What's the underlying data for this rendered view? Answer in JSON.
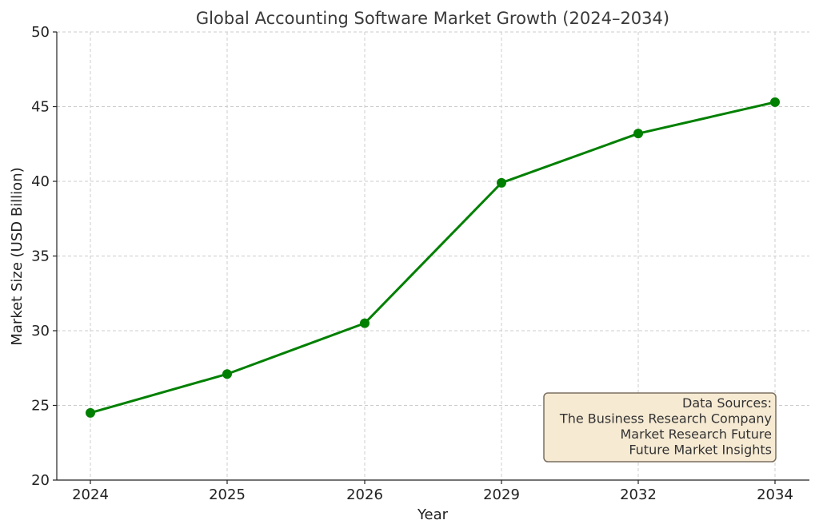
{
  "chart_data": {
    "type": "line",
    "title": "Global Accounting Software Market Growth (2024–2034)",
    "xlabel": "Year",
    "ylabel": "Market Size (USD Billion)",
    "categories": [
      "2024",
      "2025",
      "2026",
      "2029",
      "2032",
      "2034"
    ],
    "series": [
      {
        "values": [
          24.5,
          27.1,
          30.5,
          39.9,
          43.2,
          45.3
        ]
      }
    ],
    "ylim": [
      20,
      50
    ],
    "yticks": [
      "20",
      "25",
      "30",
      "35",
      "40",
      "45",
      "50"
    ],
    "grid": true,
    "line_color": "#008000",
    "note": {
      "lines": [
        "Data Sources:",
        "The Business Research Company",
        "Market Research Future",
        "Future Market Insights"
      ],
      "placement": "bottom-right"
    }
  }
}
